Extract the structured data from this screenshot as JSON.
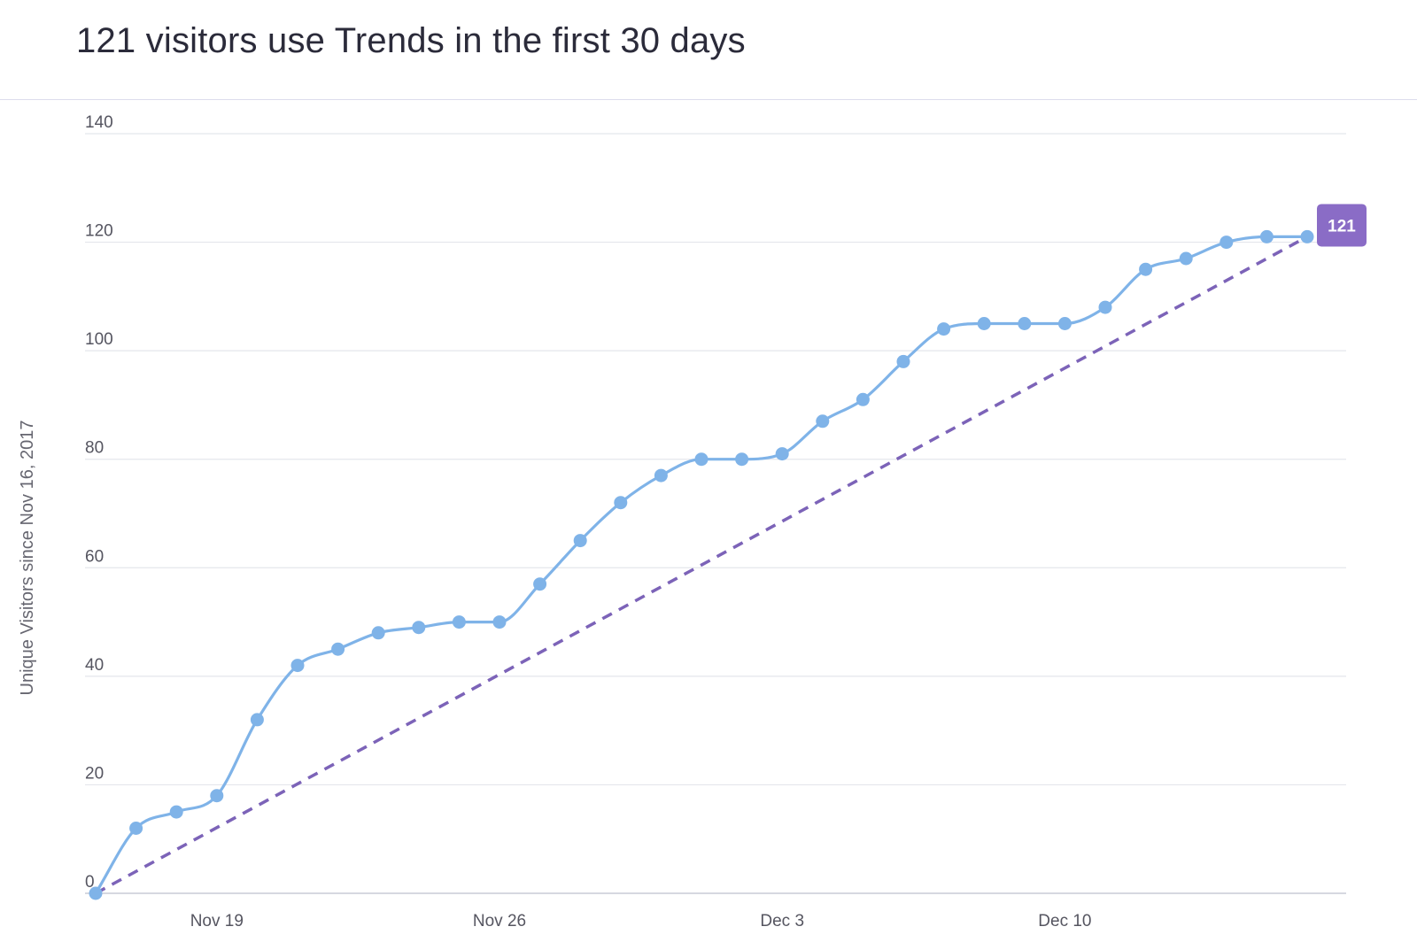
{
  "chart_data": {
    "type": "line",
    "title": "121 visitors use Trends in the first 30 days",
    "xlabel": "",
    "ylabel": "Unique Visitors since Nov 16, 2017",
    "ylim": [
      0,
      140
    ],
    "yticks": [
      0,
      20,
      40,
      60,
      80,
      100,
      120,
      140
    ],
    "xlim": [
      "2017-11-16",
      "2017-12-16"
    ],
    "xticks": [
      {
        "date": "2017-11-19",
        "label": "Nov 19"
      },
      {
        "date": "2017-11-26",
        "label": "Nov 26"
      },
      {
        "date": "2017-12-03",
        "label": "Dec 3"
      },
      {
        "date": "2017-12-10",
        "label": "Dec 10"
      }
    ],
    "grid": true,
    "series": [
      {
        "color": "#7fb3e8",
        "style": "solid-smooth-markers",
        "x": [
          "2017-11-16",
          "2017-11-17",
          "2017-11-18",
          "2017-11-19",
          "2017-11-20",
          "2017-11-21",
          "2017-11-22",
          "2017-11-23",
          "2017-11-24",
          "2017-11-25",
          "2017-11-26",
          "2017-11-27",
          "2017-11-28",
          "2017-11-29",
          "2017-11-30",
          "2017-12-01",
          "2017-12-02",
          "2017-12-03",
          "2017-12-04",
          "2017-12-05",
          "2017-12-06",
          "2017-12-07",
          "2017-12-08",
          "2017-12-09",
          "2017-12-10",
          "2017-12-11",
          "2017-12-12",
          "2017-12-13",
          "2017-12-14",
          "2017-12-15",
          "2017-12-16"
        ],
        "y": [
          0,
          12,
          15,
          18,
          32,
          42,
          45,
          48,
          49,
          50,
          50,
          57,
          65,
          72,
          77,
          80,
          80,
          81,
          87,
          91,
          98,
          104,
          105,
          105,
          105,
          108,
          115,
          117,
          120,
          121,
          121
        ]
      },
      {
        "color": "#7c63b8",
        "style": "dashed",
        "x": [
          "2017-11-16",
          "2017-12-16"
        ],
        "y": [
          0,
          121
        ]
      }
    ],
    "end_label": {
      "text": "121",
      "value": 121,
      "color": "#8a6cc6"
    }
  }
}
